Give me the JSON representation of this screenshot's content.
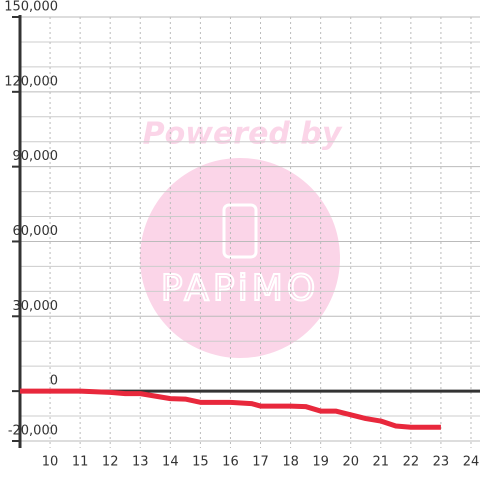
{
  "chart_data": {
    "type": "line",
    "watermark": {
      "top": "Powered by",
      "bottom": "PAPiMO"
    },
    "x": [
      9,
      10,
      11,
      12,
      12.5,
      13,
      13.5,
      14,
      14.5,
      15,
      16,
      16.7,
      17,
      18,
      18.5,
      19,
      19.5,
      20,
      20.5,
      21,
      21.5,
      22,
      23
    ],
    "series": [
      {
        "color": "#e8283c",
        "values": [
          0,
          0,
          0,
          -500,
          -1000,
          -1000,
          -2000,
          -3000,
          -3200,
          -4500,
          -4500,
          -5000,
          -6000,
          -6000,
          -6200,
          -8000,
          -8000,
          -9500,
          -11000,
          -12000,
          -14000,
          -14500,
          -14500
        ]
      }
    ],
    "xlim": [
      9,
      24.3
    ],
    "xticks": [
      10,
      11,
      12,
      13,
      14,
      15,
      16,
      17,
      18,
      19,
      20,
      21,
      22,
      23,
      24
    ],
    "ylim": [
      -20000,
      150000
    ],
    "yticks": [
      {
        "value": -20000,
        "label": "-20,000"
      },
      {
        "value": 0,
        "label": "0"
      },
      {
        "value": 30000,
        "label": "30,000"
      },
      {
        "value": 60000,
        "label": "60,000"
      },
      {
        "value": 90000,
        "label": "90,000"
      },
      {
        "value": 120000,
        "label": "120,000"
      },
      {
        "value": 150000,
        "label": "150,000"
      }
    ],
    "y_minor_ticks": [
      -10000,
      10000,
      20000,
      40000,
      50000,
      70000,
      80000,
      100000,
      110000,
      130000,
      140000
    ],
    "grid": true
  }
}
